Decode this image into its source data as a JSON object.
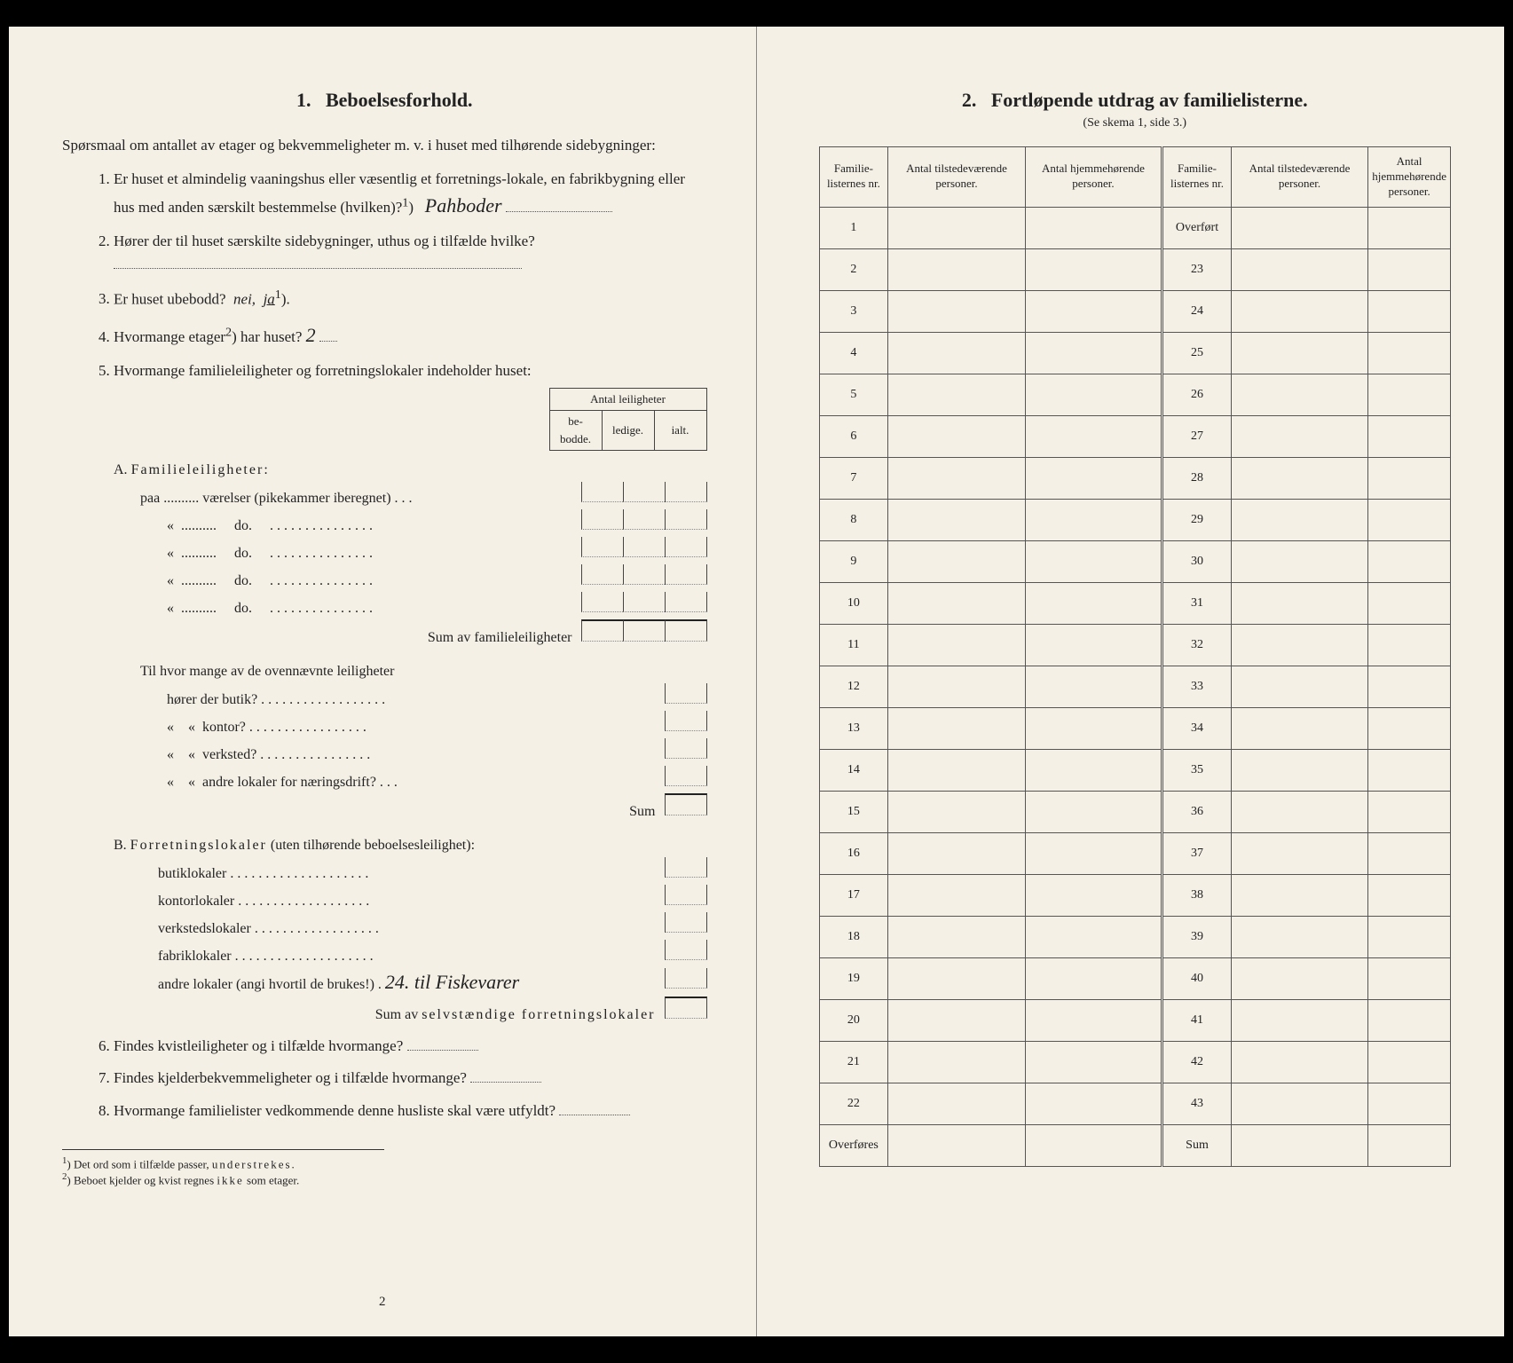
{
  "left": {
    "heading_num": "1.",
    "heading": "Beboelsesforhold.",
    "intro": "Spørsmaal om antallet av etager og bekvemmeligheter m. v. i huset med tilhørende sidebygninger:",
    "q1": "Er huset et almindelig vaaningshus eller væsentlig et forretnings-lokale, en fabrikbygning eller hus med anden særskilt bestemmelse (hvilken)?",
    "q1_sup": "1",
    "q1_answer": "Pahboder",
    "q2": "Hører der til huset særskilte sidebygninger, uthus og i tilfælde hvilke?",
    "q3_pre": "Er huset ubebodd?",
    "q3_nei": "nei,",
    "q3_ja": "ja",
    "q3_sup": "1",
    "q3_post": ").",
    "q4_pre": "Hvormange etager",
    "q4_sup": "2",
    "q4_post": ") har huset?",
    "q4_answer": "2",
    "q5": "Hvormange familieleiligheter og forretningslokaler indeholder huset:",
    "antal_header": "Antal leiligheter",
    "col_bebodde": "be-bodde.",
    "col_ledige": "ledige.",
    "col_ialt": "ialt.",
    "a_label": "A. Familieleiligheter:",
    "a_spaced": "Familieleiligheter",
    "a_row1": "paa .......... værelser (pikekammer iberegnet) . . .",
    "a_do": "do.",
    "sum_a": "Sum av familieleiligheter",
    "middle_q": "Til hvor mange av de ovennævnte leiligheter",
    "m1": "hører der butik? . . . . . . . . . . . . . . . . . .",
    "m2": "kontor? . . . . . . . . . . . . . . . . .",
    "m3": "verksted? . . . . . . . . . . . . . . . .",
    "m4": "andre lokaler for næringsdrift? . . .",
    "sum_mid": "Sum",
    "b_label_pre": "B.",
    "b_label_spaced": "Forretningslokaler",
    "b_label_post": "(uten tilhørende beboelsesleilighet):",
    "b1": "butiklokaler . . . . . . . . . . . . . . . . . . . .",
    "b2": "kontorlokaler  . . . . . . . . . . . . . . . . . . .",
    "b3": "verkstedslokaler . . . . . . . . . . . . . . . . . .",
    "b4": "fabriklokaler . . . . . . . . . . . . . . . . . . . .",
    "b5": "andre lokaler (angi hvortil de brukes!) .",
    "b5_hand": "24. til Fiskevarer",
    "sum_b_pre": "Sum av",
    "sum_b_spaced": "selvstændige forretningslokaler",
    "q6": "Findes kvistleiligheter og i tilfælde hvormange?",
    "q7": "Findes kjelderbekvemmeligheter og i tilfælde hvormange?",
    "q8": "Hvormange familielister vedkommende denne husliste skal være utfyldt?",
    "footnote1_sup": "1",
    "footnote1": ") Det ord som i tilfælde passer, understrekes.",
    "footnote1_spaced": "understrekes",
    "footnote2_sup": "2",
    "footnote2_pre": ") Beboet kjelder og kvist regnes",
    "footnote2_spaced": "ikke",
    "footnote2_post": "som etager.",
    "page_num": "2"
  },
  "right": {
    "heading_num": "2.",
    "heading": "Fortløpende utdrag av familielisterne.",
    "subnote": "(Se skema 1, side 3.)",
    "col1": "Familie-listernes nr.",
    "col2": "Antal tilstedeværende personer.",
    "col3": "Antal hjemmehørende personer.",
    "overfort": "Overført",
    "overfores": "Overføres",
    "sum": "Sum",
    "left_rows": [
      "1",
      "2",
      "3",
      "4",
      "5",
      "6",
      "7",
      "8",
      "9",
      "10",
      "11",
      "12",
      "13",
      "14",
      "15",
      "16",
      "17",
      "18",
      "19",
      "20",
      "21",
      "22"
    ],
    "right_rows": [
      "23",
      "24",
      "25",
      "26",
      "27",
      "28",
      "29",
      "30",
      "31",
      "32",
      "33",
      "34",
      "35",
      "36",
      "37",
      "38",
      "39",
      "40",
      "41",
      "42",
      "43"
    ]
  }
}
